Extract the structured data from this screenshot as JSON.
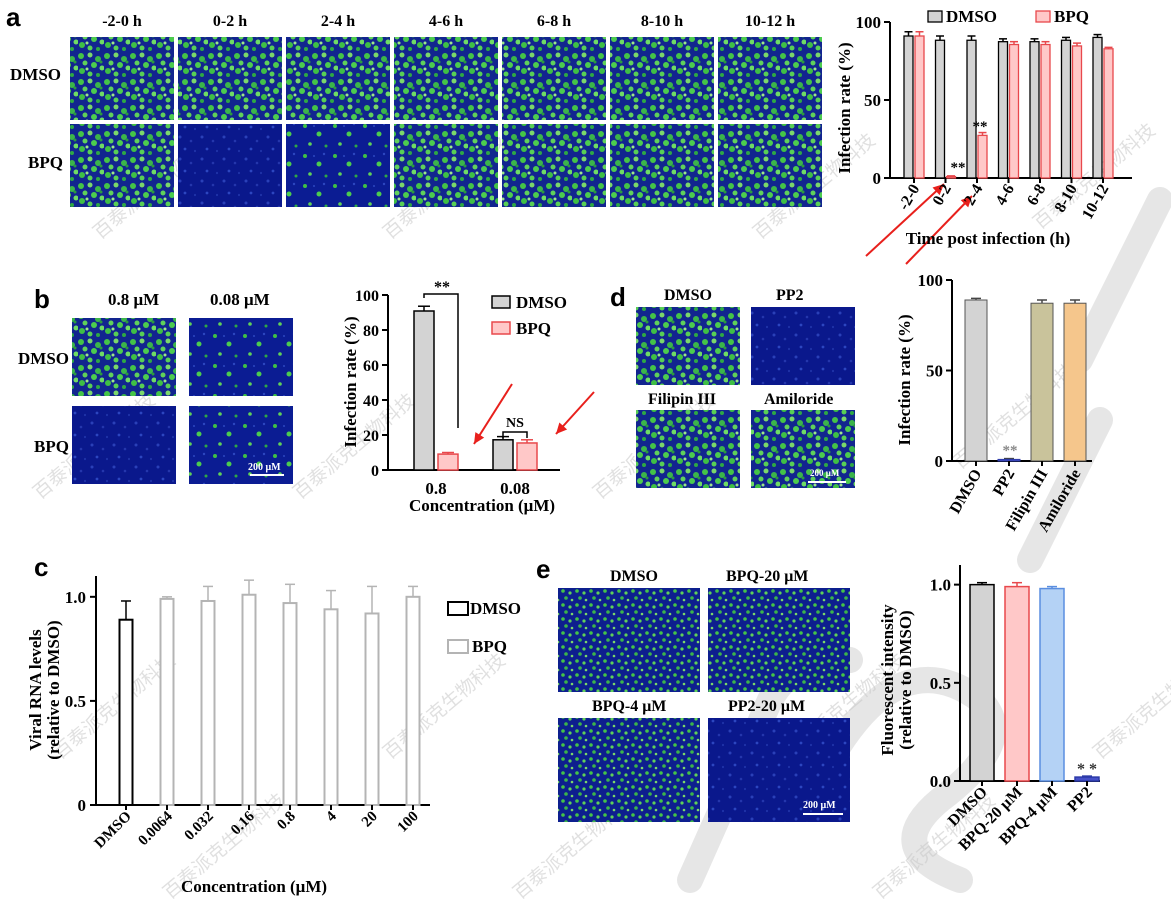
{
  "panels": {
    "a": {
      "letter": "a",
      "time_labels": [
        "-2-0 h",
        "0-2 h",
        "2-4 h",
        "4-6 h",
        "6-8 h",
        "8-10 h",
        "10-12 h"
      ],
      "row_labels": [
        "DMSO",
        "BPQ"
      ],
      "image_densities": [
        [
          1,
          1,
          1,
          1,
          1,
          1,
          1
        ],
        [
          0.9,
          0.03,
          0.3,
          0.9,
          0.95,
          0.95,
          0.9
        ]
      ]
    },
    "b": {
      "letter": "b",
      "conc_labels": [
        "0.8 μM",
        "0.08 μM"
      ],
      "row_labels": [
        "DMSO",
        "BPQ"
      ],
      "image_densities": [
        [
          1,
          0.5
        ],
        [
          0.15,
          0.4
        ]
      ],
      "scale_bar": "200 μM"
    },
    "c": {
      "letter": "c"
    },
    "d": {
      "letter": "d",
      "image_labels": [
        "DMSO",
        "PP2",
        "Filipin III",
        "Amiloride"
      ],
      "image_densities": [
        0.9,
        0.03,
        0.9,
        0.9
      ],
      "scale_bar": "200 μM"
    },
    "e": {
      "letter": "e",
      "image_labels": [
        "DMSO",
        "BPQ-20 μM",
        "BPQ-4 μM",
        "PP2-20 μM"
      ],
      "image_densities": [
        0.9,
        0.9,
        0.9,
        0.15
      ],
      "scale_bar": "200 μM"
    }
  },
  "chart_data": [
    {
      "id": "a",
      "type": "bar",
      "categories": [
        "-2-0",
        "0-2",
        "2-4",
        "4-6",
        "6-8",
        "8-10",
        "10-12"
      ],
      "series": [
        {
          "name": "DMSO",
          "values": [
            100,
            97,
            97,
            96,
            96,
            97,
            99
          ],
          "errors": [
            3,
            3,
            3,
            2,
            2,
            2,
            2
          ]
        },
        {
          "name": "BPQ",
          "values": [
            100,
            1,
            30,
            94,
            94,
            93,
            91
          ],
          "errors": [
            3,
            0.5,
            2,
            2,
            2,
            2,
            1
          ]
        }
      ],
      "ylabel": "Infection rate (%)",
      "xlabel": "Time post infection (h)",
      "ylim": [
        0,
        100
      ],
      "yticks": [
        0,
        50,
        100
      ],
      "annotations": [
        "**",
        "**"
      ],
      "legend": "top"
    },
    {
      "id": "b",
      "type": "bar",
      "categories": [
        "0.8",
        "0.08"
      ],
      "series": [
        {
          "name": "DMSO",
          "values": [
            100,
            19
          ],
          "errors": [
            3,
            2
          ]
        },
        {
          "name": "BPQ",
          "values": [
            10,
            17
          ],
          "errors": [
            1,
            2
          ]
        }
      ],
      "ylabel": "Infection rate (%)",
      "xlabel": "Concentration (μM)",
      "ylim": [
        0,
        100
      ],
      "yticks": [
        0,
        20,
        40,
        60,
        80,
        100
      ],
      "annotations": [
        "**",
        "NS"
      ],
      "legend": "right"
    },
    {
      "id": "c",
      "type": "bar",
      "categories": [
        "DMSO",
        "0.0064",
        "0.032",
        "0.16",
        "0.8",
        "4",
        "20",
        "100"
      ],
      "series": [
        {
          "name": "DMSO",
          "values": [
            0.89,
            null,
            null,
            null,
            null,
            null,
            null,
            null
          ],
          "errors": [
            0.09,
            null,
            null,
            null,
            null,
            null,
            null,
            null
          ]
        },
        {
          "name": "BPQ",
          "values": [
            null,
            0.99,
            0.98,
            1.01,
            0.97,
            0.94,
            0.92,
            1.0
          ],
          "errors": [
            null,
            0.01,
            0.07,
            0.07,
            0.09,
            0.09,
            0.13,
            0.05
          ]
        }
      ],
      "ylabel": "Viral RNA levels\n(relative to DMSO)",
      "xlabel": "Concentration (μM)",
      "ylim": [
        0,
        1.1
      ],
      "yticks": [
        0,
        0.5,
        1.0
      ],
      "legend": "right"
    },
    {
      "id": "d",
      "type": "bar",
      "categories": [
        "DMSO",
        "PP2",
        "Filipin III",
        "Amiloride"
      ],
      "values": [
        100,
        1,
        98,
        98
      ],
      "errors": [
        1,
        0.5,
        2,
        2
      ],
      "colors": [
        "#d3d3d3",
        "#4650c8",
        "#c9c39b",
        "#f5c68c"
      ],
      "ylabel": "Infection rate (%)",
      "ylim": [
        0,
        100
      ],
      "yticks": [
        0,
        50,
        100
      ],
      "annotations": [
        "**"
      ]
    },
    {
      "id": "e",
      "type": "bar",
      "categories": [
        "DMSO",
        "BPQ-20 μM",
        "BPQ-4 μM",
        "PP2"
      ],
      "values": [
        1.0,
        0.99,
        0.98,
        0.02
      ],
      "errors": [
        0.01,
        0.02,
        0.01,
        0.005
      ],
      "colors": [
        "#d3d3d3",
        "#ffc8c8",
        "#b4d2f5",
        "#4650c8"
      ],
      "ylabel": "Fluorescent intensity\n(relative to DMSO)",
      "ylim": [
        0,
        1.1
      ],
      "yticks": [
        "0.0",
        "0.5",
        "1.0"
      ],
      "annotations": [
        "* *"
      ]
    }
  ],
  "watermark": "百泰派克生物科技",
  "colors": {
    "dmso_fill": "#d3d3d3",
    "bpq_fill": "#ffc8c8",
    "bpq_stroke": "#e8484c",
    "c_bpq_stroke": "#b4b4b4",
    "arrow": "#e8201c",
    "cell_bg": "#0a1a8c",
    "cell_green": "#3ccc3c"
  }
}
